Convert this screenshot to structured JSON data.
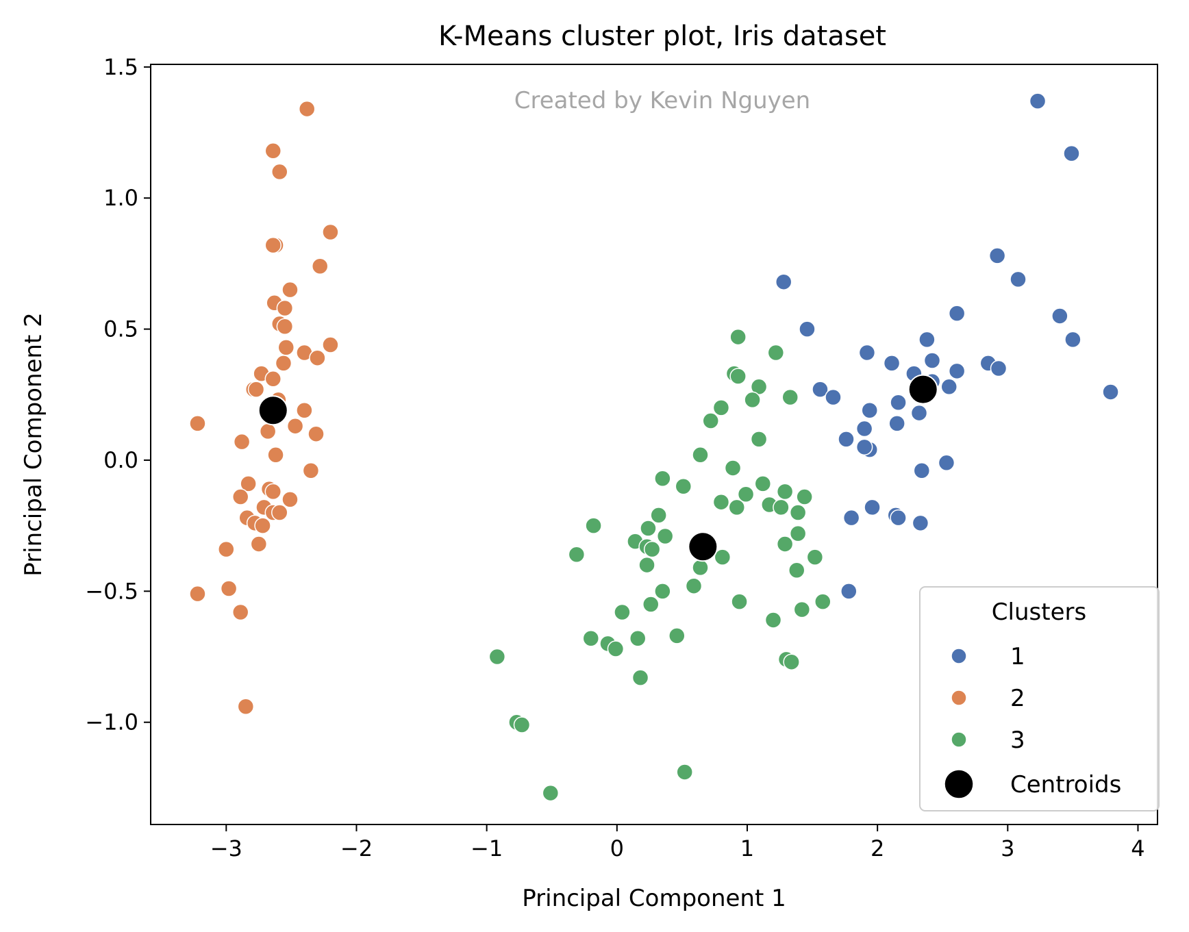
{
  "chart_data": {
    "type": "scatter",
    "title": "K-Means cluster plot, Iris dataset",
    "annotation": "Created by Kevin Nguyen",
    "xlabel": "Principal Component 1",
    "ylabel": "Principal Component 2",
    "xlim": [
      -3.58,
      4.15
    ],
    "ylim": [
      -1.39,
      1.51
    ],
    "xticks": [
      -3,
      -2,
      -1,
      0,
      1,
      2,
      3,
      4
    ],
    "xtick_labels": [
      "−3",
      "−2",
      "−1",
      "0",
      "1",
      "2",
      "3",
      "4"
    ],
    "yticks": [
      -1.0,
      -0.5,
      0.0,
      0.5,
      1.0,
      1.5
    ],
    "ytick_labels": [
      "−1.0",
      "−0.5",
      "0.0",
      "0.5",
      "1.0",
      "1.5"
    ],
    "grid": false,
    "legend": {
      "title": "Clusters",
      "position": "bottom-right",
      "entries": [
        "1",
        "2",
        "3",
        "Centroids"
      ]
    },
    "series": [
      {
        "name": "1",
        "color": "#4c72b0",
        "points": [
          [
            3.23,
            1.37
          ],
          [
            3.49,
            1.17
          ],
          [
            2.92,
            0.78
          ],
          [
            3.08,
            0.69
          ],
          [
            1.28,
            0.68
          ],
          [
            2.61,
            0.56
          ],
          [
            3.4,
            0.55
          ],
          [
            3.5,
            0.46
          ],
          [
            1.46,
            0.5
          ],
          [
            2.38,
            0.46
          ],
          [
            1.92,
            0.41
          ],
          [
            2.11,
            0.37
          ],
          [
            2.42,
            0.38
          ],
          [
            2.85,
            0.37
          ],
          [
            2.93,
            0.35
          ],
          [
            2.61,
            0.34
          ],
          [
            2.28,
            0.33
          ],
          [
            2.42,
            0.3
          ],
          [
            2.55,
            0.28
          ],
          [
            1.56,
            0.27
          ],
          [
            1.66,
            0.24
          ],
          [
            2.32,
            0.18
          ],
          [
            3.79,
            0.26
          ],
          [
            2.16,
            0.22
          ],
          [
            1.94,
            0.19
          ],
          [
            1.9,
            0.12
          ],
          [
            2.15,
            0.14
          ],
          [
            1.76,
            0.08
          ],
          [
            1.94,
            0.04
          ],
          [
            1.9,
            0.05
          ],
          [
            2.53,
            -0.01
          ],
          [
            2.34,
            -0.04
          ],
          [
            1.96,
            -0.18
          ],
          [
            2.14,
            -0.21
          ],
          [
            2.16,
            -0.22
          ],
          [
            1.8,
            -0.22
          ],
          [
            2.33,
            -0.24
          ],
          [
            1.78,
            -0.5
          ]
        ]
      },
      {
        "name": "2",
        "color": "#dd8452",
        "points": [
          [
            -2.38,
            1.34
          ],
          [
            -2.64,
            1.18
          ],
          [
            -2.59,
            1.1
          ],
          [
            -2.2,
            0.87
          ],
          [
            -2.62,
            0.82
          ],
          [
            -2.64,
            0.82
          ],
          [
            -2.28,
            0.74
          ],
          [
            -2.51,
            0.65
          ],
          [
            -2.63,
            0.6
          ],
          [
            -2.55,
            0.58
          ],
          [
            -2.59,
            0.52
          ],
          [
            -2.55,
            0.51
          ],
          [
            -2.54,
            0.43
          ],
          [
            -2.2,
            0.44
          ],
          [
            -2.4,
            0.41
          ],
          [
            -2.3,
            0.39
          ],
          [
            -2.56,
            0.37
          ],
          [
            -2.73,
            0.33
          ],
          [
            -2.64,
            0.31
          ],
          [
            -2.79,
            0.27
          ],
          [
            -2.77,
            0.27
          ],
          [
            -2.6,
            0.23
          ],
          [
            -2.4,
            0.19
          ],
          [
            -2.68,
            0.11
          ],
          [
            -2.47,
            0.13
          ],
          [
            -2.31,
            0.1
          ],
          [
            -3.22,
            0.14
          ],
          [
            -2.88,
            0.07
          ],
          [
            -2.62,
            0.02
          ],
          [
            -2.35,
            -0.04
          ],
          [
            -2.83,
            -0.09
          ],
          [
            -2.67,
            -0.11
          ],
          [
            -2.64,
            -0.12
          ],
          [
            -2.89,
            -0.14
          ],
          [
            -2.51,
            -0.15
          ],
          [
            -2.71,
            -0.18
          ],
          [
            -2.64,
            -0.2
          ],
          [
            -2.59,
            -0.2
          ],
          [
            -2.84,
            -0.22
          ],
          [
            -2.78,
            -0.24
          ],
          [
            -2.72,
            -0.25
          ],
          [
            -2.75,
            -0.32
          ],
          [
            -3.0,
            -0.34
          ],
          [
            -2.98,
            -0.49
          ],
          [
            -3.22,
            -0.51
          ],
          [
            -2.89,
            -0.58
          ],
          [
            -2.85,
            -0.94
          ]
        ]
      },
      {
        "name": "3",
        "color": "#55a868",
        "points": [
          [
            0.93,
            0.47
          ],
          [
            1.22,
            0.41
          ],
          [
            0.9,
            0.33
          ],
          [
            0.93,
            0.32
          ],
          [
            1.09,
            0.28
          ],
          [
            1.33,
            0.24
          ],
          [
            1.04,
            0.23
          ],
          [
            0.8,
            0.2
          ],
          [
            0.72,
            0.15
          ],
          [
            1.09,
            0.08
          ],
          [
            0.64,
            0.02
          ],
          [
            0.89,
            -0.03
          ],
          [
            0.35,
            -0.07
          ],
          [
            0.51,
            -0.1
          ],
          [
            1.12,
            -0.09
          ],
          [
            0.99,
            -0.13
          ],
          [
            1.29,
            -0.12
          ],
          [
            1.44,
            -0.14
          ],
          [
            0.8,
            -0.16
          ],
          [
            1.17,
            -0.17
          ],
          [
            1.26,
            -0.18
          ],
          [
            0.92,
            -0.18
          ],
          [
            1.39,
            -0.2
          ],
          [
            0.32,
            -0.21
          ],
          [
            -0.18,
            -0.25
          ],
          [
            0.24,
            -0.26
          ],
          [
            0.37,
            -0.29
          ],
          [
            1.39,
            -0.28
          ],
          [
            0.14,
            -0.31
          ],
          [
            0.23,
            -0.33
          ],
          [
            0.27,
            -0.34
          ],
          [
            1.29,
            -0.32
          ],
          [
            -0.31,
            -0.36
          ],
          [
            0.81,
            -0.37
          ],
          [
            1.52,
            -0.37
          ],
          [
            0.23,
            -0.4
          ],
          [
            0.64,
            -0.41
          ],
          [
            1.38,
            -0.42
          ],
          [
            0.59,
            -0.48
          ],
          [
            0.35,
            -0.5
          ],
          [
            0.94,
            -0.54
          ],
          [
            1.58,
            -0.54
          ],
          [
            0.26,
            -0.55
          ],
          [
            1.42,
            -0.57
          ],
          [
            0.04,
            -0.58
          ],
          [
            1.2,
            -0.61
          ],
          [
            0.46,
            -0.67
          ],
          [
            -0.2,
            -0.68
          ],
          [
            0.16,
            -0.68
          ],
          [
            -0.07,
            -0.7
          ],
          [
            -0.01,
            -0.72
          ],
          [
            -0.92,
            -0.75
          ],
          [
            1.3,
            -0.76
          ],
          [
            1.34,
            -0.77
          ],
          [
            0.18,
            -0.83
          ],
          [
            -0.77,
            -1.0
          ],
          [
            -0.73,
            -1.01
          ],
          [
            0.52,
            -1.19
          ],
          [
            -0.51,
            -1.27
          ]
        ]
      },
      {
        "name": "Centroids",
        "color": "#000000",
        "points": [
          [
            2.35,
            0.27
          ],
          [
            -2.64,
            0.19
          ],
          [
            0.66,
            -0.33
          ]
        ]
      }
    ]
  }
}
